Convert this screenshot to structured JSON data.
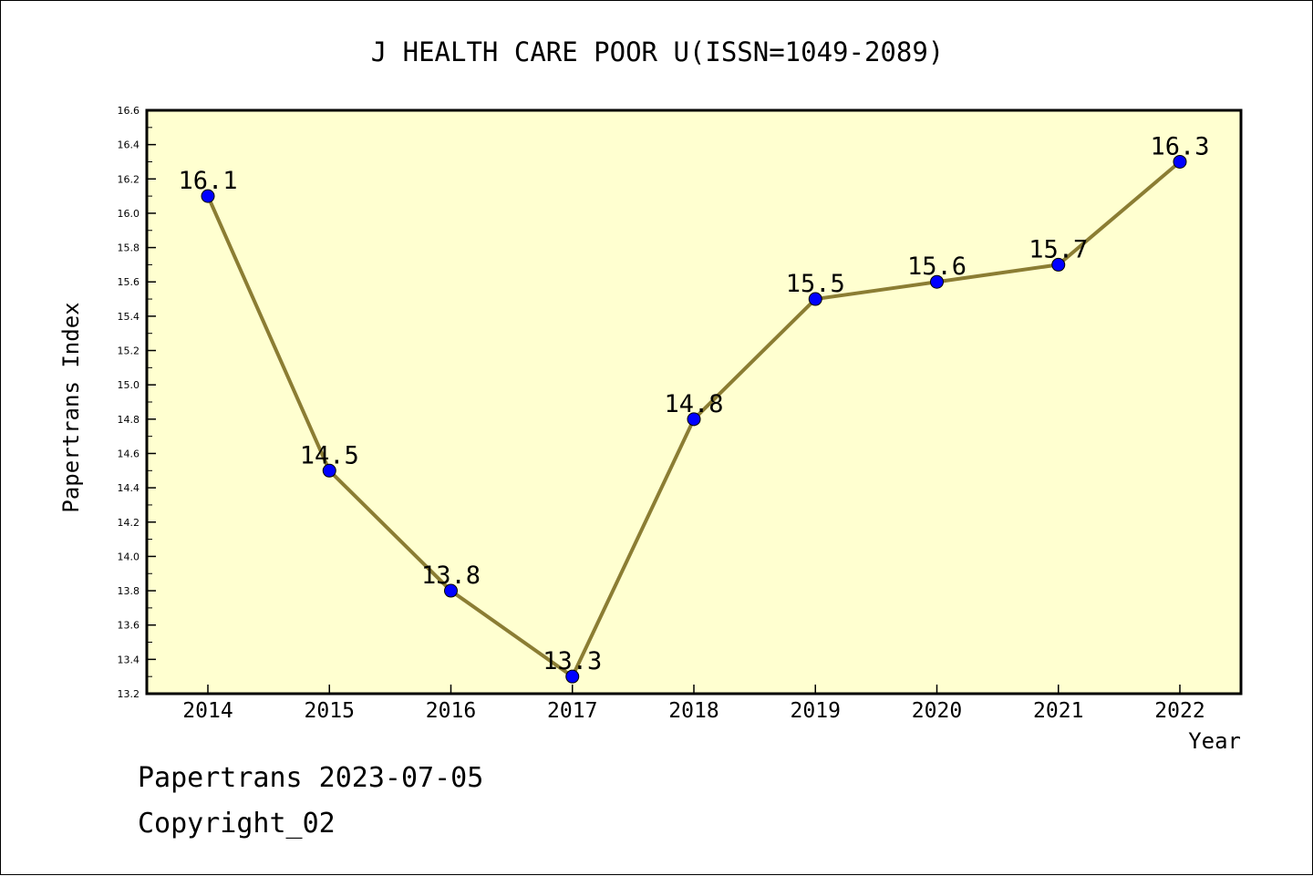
{
  "chart_data": {
    "type": "line",
    "title": "J HEALTH CARE POOR U(ISSN=1049-2089)",
    "xlabel": "Year",
    "ylabel": "Papertrans Index",
    "x": [
      "2014",
      "2015",
      "2016",
      "2017",
      "2018",
      "2019",
      "2020",
      "2021",
      "2022"
    ],
    "series": [
      {
        "values": [
          16.1,
          14.5,
          13.8,
          13.3,
          14.8,
          15.5,
          15.6,
          15.7,
          16.3
        ],
        "data_labels": [
          "16.1",
          "14.5",
          "13.8",
          "13.3",
          "14.8",
          "15.5",
          "15.6",
          "15.7",
          "16.3"
        ]
      }
    ],
    "ylim": [
      13.2,
      16.6
    ],
    "yticks": [
      "13.2",
      "13.4",
      "13.6",
      "13.8",
      "14.0",
      "14.2",
      "14.4",
      "14.6",
      "14.8",
      "15.0",
      "15.2",
      "15.4",
      "15.6",
      "15.8",
      "16.0",
      "16.2",
      "16.4",
      "16.6"
    ],
    "grid": false,
    "colors": {
      "plot_background": "#ffffd0",
      "line": "#8b7d33",
      "marker": "#0000ff"
    }
  },
  "footer": {
    "line1": "Papertrans 2023-07-05",
    "line2": "Copyright_02"
  }
}
